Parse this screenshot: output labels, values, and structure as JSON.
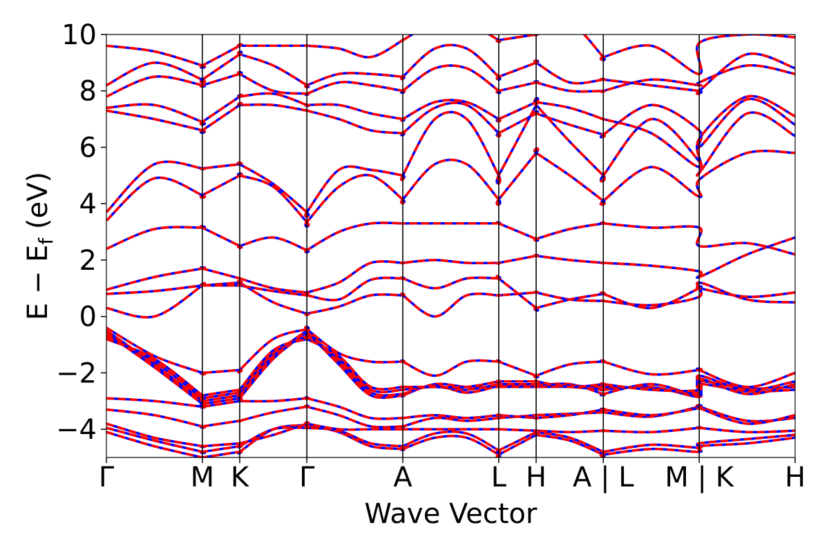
{
  "chart_data": {
    "type": "line",
    "title": "",
    "xlabel": "Wave Vector",
    "ylabel": {
      "pre": "E − E",
      "sub": "f",
      "post": " (eV)"
    },
    "ylim": [
      -5,
      10
    ],
    "yticks": [
      -4,
      -2,
      0,
      2,
      4,
      6,
      8,
      10
    ],
    "ytick_labels": [
      "−4",
      "−2",
      "0",
      "2",
      "4",
      "6",
      "8",
      "10"
    ],
    "grid": false,
    "legend": "none",
    "kpath": {
      "segments": [
        {
          "start": "Γ",
          "end": "M",
          "length": 1.0
        },
        {
          "start": "M",
          "end": "K",
          "length": 0.39
        },
        {
          "start": "K",
          "end": "Γ",
          "length": 0.7
        },
        {
          "start": "Γ",
          "end": "A",
          "length": 1.0
        },
        {
          "start": "A",
          "end": "L",
          "length": 1.0
        },
        {
          "start": "L",
          "end": "H",
          "length": 0.39
        },
        {
          "start": "H",
          "end": "A",
          "length": 0.7
        },
        {
          "start": "L",
          "end": "M",
          "length": 1.0
        },
        {
          "start": "K",
          "end": "H",
          "length": 1.0
        }
      ],
      "tick_labels": [
        "Γ",
        "M",
        "K",
        "Γ",
        "A",
        "L",
        "H",
        "A | L",
        "M | K",
        "H"
      ]
    },
    "colors": {
      "series_a": "#0000ff",
      "series_b": "#ff0000",
      "frame": "#000000"
    },
    "series": [
      {
        "style": "solid blue"
      },
      {
        "style": "dashed red"
      }
    ],
    "bands": [
      {
        "seg": [
          [
            -4.1,
            -4.6,
            -5.0
          ],
          [
            -5.0,
            -4.8
          ],
          [
            -4.8,
            -4.0,
            -3.85
          ],
          [
            -3.85,
            -4.1,
            -4.6,
            -4.7
          ],
          [
            -4.7,
            -4.3,
            -4.3,
            -4.9
          ],
          [
            -4.9,
            -4.2
          ],
          [
            -4.2,
            -4.4,
            -4.9
          ],
          [
            -4.9,
            -4.7,
            -4.8
          ],
          [
            -4.6,
            -4.5,
            -4.3
          ]
        ]
      },
      {
        "seg": [
          [
            -3.95,
            -4.4,
            -4.8
          ],
          [
            -4.8,
            -4.6
          ],
          [
            -4.6,
            -4.0,
            -3.95
          ],
          [
            -3.95,
            -4.05,
            -4.5,
            -4.6
          ],
          [
            -4.6,
            -4.15,
            -4.15,
            -4.75
          ],
          [
            -4.75,
            -4.1
          ],
          [
            -4.1,
            -4.3,
            -4.8
          ],
          [
            -4.8,
            -4.55,
            -4.65
          ],
          [
            -4.5,
            -4.35,
            -4.2
          ]
        ]
      },
      {
        "seg": [
          [
            -3.8,
            -4.3,
            -4.6
          ],
          [
            -4.6,
            -4.5
          ],
          [
            -4.5,
            -4.2,
            -3.8
          ],
          [
            -3.8,
            -4.0,
            -4.0,
            -4.0
          ],
          [
            -4.0,
            -4.0,
            -4.0,
            -4.0
          ],
          [
            -4.0,
            -4.05
          ],
          [
            -4.05,
            -4.1,
            -4.05
          ],
          [
            -4.05,
            -4.1,
            -3.95
          ],
          [
            -3.95,
            -4.1,
            -4.05
          ]
        ]
      },
      {
        "seg": [
          [
            -3.3,
            -3.5,
            -3.9
          ],
          [
            -3.9,
            -3.7
          ],
          [
            -3.7,
            -3.4,
            -3.2
          ],
          [
            -3.2,
            -3.5,
            -3.9,
            -3.9
          ],
          [
            -3.9,
            -3.6,
            -3.7,
            -3.6
          ],
          [
            -3.6,
            -3.5
          ],
          [
            -3.5,
            -3.45,
            -3.4
          ],
          [
            -3.4,
            -3.55,
            -3.2
          ],
          [
            -3.2,
            -3.7,
            -3.6
          ]
        ]
      },
      {
        "seg": [
          [
            -2.9,
            -3.0,
            -3.2
          ],
          [
            -3.2,
            -3.0
          ],
          [
            -3.0,
            -3.0,
            -2.9
          ],
          [
            -2.9,
            -3.2,
            -3.6,
            -3.6
          ],
          [
            -3.6,
            -3.5,
            -3.6,
            -3.5
          ],
          [
            -3.5,
            -3.6
          ],
          [
            -3.6,
            -3.5,
            -3.3
          ],
          [
            -3.3,
            -3.5,
            -3.25
          ],
          [
            -3.25,
            -3.8,
            -3.5
          ]
        ]
      },
      {
        "seg": [
          [
            -0.6,
            -1.8,
            -3.1
          ],
          [
            -3.1,
            -2.9
          ],
          [
            -2.9,
            -1.5,
            -0.55
          ],
          [
            -0.55,
            -1.7,
            -2.8,
            -2.8
          ],
          [
            -2.8,
            -2.4,
            -2.5,
            -2.5
          ],
          [
            -2.5,
            -2.5
          ],
          [
            -2.5,
            -2.5,
            -2.6
          ],
          [
            -2.6,
            -2.5,
            -2.85
          ],
          [
            -2.4,
            -2.65,
            -2.6
          ]
        ]
      },
      {
        "seg": [
          [
            -0.5,
            -1.7,
            -3.0
          ],
          [
            -3.0,
            -2.8
          ],
          [
            -2.8,
            -1.4,
            -0.5
          ],
          [
            -0.5,
            -1.6,
            -2.7,
            -2.75
          ],
          [
            -2.75,
            -2.45,
            -2.7,
            -2.45
          ],
          [
            -2.45,
            -2.45
          ],
          [
            -2.45,
            -2.4,
            -2.75
          ],
          [
            -2.75,
            -2.4,
            -2.8
          ],
          [
            -2.3,
            -2.55,
            -2.5
          ]
        ]
      },
      {
        "seg": [
          [
            -0.7,
            -1.6,
            -2.9
          ],
          [
            -2.9,
            -2.7
          ],
          [
            -2.7,
            -1.3,
            -0.7
          ],
          [
            -0.7,
            -1.5,
            -2.6,
            -2.6
          ],
          [
            -2.6,
            -2.5,
            -2.6,
            -2.4
          ],
          [
            -2.4,
            -2.4
          ],
          [
            -2.4,
            -2.45,
            -2.5
          ],
          [
            -2.5,
            -2.55,
            -2.7
          ],
          [
            -2.2,
            -2.75,
            -2.4
          ]
        ]
      },
      {
        "seg": [
          [
            -0.8,
            -1.5,
            -2.8
          ],
          [
            -2.8,
            -2.6
          ],
          [
            -2.6,
            -1.2,
            -0.8
          ],
          [
            -0.8,
            -1.4,
            -2.5,
            -2.5
          ],
          [
            -2.5,
            -2.5,
            -2.5,
            -2.3
          ],
          [
            -2.3,
            -2.3
          ],
          [
            -2.3,
            -2.5,
            -2.4
          ],
          [
            -2.4,
            -2.6,
            -2.6
          ],
          [
            -2.1,
            -2.6,
            -2.3
          ]
        ]
      },
      {
        "seg": [
          [
            -0.4,
            -1.4,
            -2.0
          ],
          [
            -2.0,
            -1.9
          ],
          [
            -1.9,
            -0.8,
            -0.45
          ],
          [
            -0.45,
            -1.3,
            -1.6,
            -1.6
          ],
          [
            -1.6,
            -2.1,
            -1.6,
            -1.6
          ],
          [
            -1.6,
            -2.1
          ],
          [
            -2.1,
            -1.7,
            -1.6
          ],
          [
            -1.6,
            -2.05,
            -1.9
          ],
          [
            -1.9,
            -2.5,
            -2.0
          ]
        ]
      },
      {
        "seg": [
          [
            0.3,
            0.0,
            1.1
          ],
          [
            1.1,
            1.2
          ],
          [
            1.2,
            0.5,
            0.1
          ],
          [
            0.1,
            0.35,
            0.75,
            0.75
          ],
          [
            0.75,
            0.0,
            0.75,
            0.75
          ],
          [
            0.75,
            0.85
          ],
          [
            0.85,
            0.6,
            0.55
          ],
          [
            0.55,
            0.4,
            0.7
          ],
          [
            1.2,
            0.6,
            0.5
          ]
        ]
      },
      {
        "seg": [
          [
            0.8,
            0.9,
            1.1
          ],
          [
            1.1,
            1.1
          ],
          [
            1.1,
            0.9,
            0.75
          ],
          [
            0.75,
            0.6,
            1.3,
            1.35
          ],
          [
            1.35,
            1.0,
            1.35,
            1.35
          ],
          [
            1.35,
            0.3
          ],
          [
            0.3,
            0.6,
            0.8
          ],
          [
            0.8,
            0.3,
            1.0
          ],
          [
            1.0,
            0.7,
            0.85
          ]
        ]
      },
      {
        "seg": [
          [
            0.95,
            1.4,
            1.7
          ],
          [
            1.7,
            1.35
          ],
          [
            1.35,
            1.0,
            0.85
          ],
          [
            0.85,
            1.2,
            1.9,
            1.9
          ],
          [
            1.9,
            2.0,
            1.9,
            1.9
          ],
          [
            1.9,
            2.15
          ],
          [
            2.15,
            2.0,
            1.9
          ],
          [
            1.9,
            1.8,
            1.6
          ],
          [
            1.4,
            2.2,
            2.8
          ]
        ]
      },
      {
        "seg": [
          [
            2.4,
            3.1,
            3.15
          ],
          [
            3.15,
            2.5
          ],
          [
            2.5,
            2.8,
            2.35
          ],
          [
            2.35,
            3.0,
            3.3,
            3.3
          ],
          [
            3.3,
            3.3,
            3.3,
            3.3
          ],
          [
            3.3,
            2.75
          ],
          [
            2.75,
            3.1,
            3.3
          ],
          [
            3.3,
            3.15,
            3.15
          ],
          [
            2.5,
            2.6,
            2.2
          ]
        ]
      },
      {
        "seg": [
          [
            3.4,
            4.9,
            4.3
          ],
          [
            4.3,
            5.0
          ],
          [
            5.0,
            4.6,
            3.35
          ],
          [
            3.35,
            4.6,
            5.0,
            4.15
          ],
          [
            4.15,
            5.4,
            5.4,
            4.15
          ],
          [
            4.15,
            5.8
          ],
          [
            5.8,
            5.0,
            4.1
          ],
          [
            4.1,
            5.3,
            4.25
          ],
          [
            4.85,
            5.8,
            5.8
          ]
        ]
      },
      {
        "seg": [
          [
            3.7,
            5.4,
            5.25
          ],
          [
            5.25,
            5.4
          ],
          [
            5.4,
            4.7,
            3.7
          ],
          [
            3.7,
            5.2,
            5.2,
            5.0
          ],
          [
            5.0,
            7.0,
            7.0,
            5.0
          ],
          [
            5.0,
            7.5
          ],
          [
            7.5,
            6.2,
            5.0
          ],
          [
            5.0,
            7.0,
            5.5
          ],
          [
            5.1,
            7.2,
            6.4
          ]
        ]
      },
      {
        "seg": [
          [
            7.3,
            7.0,
            6.6
          ],
          [
            6.6,
            7.5
          ],
          [
            7.5,
            7.5,
            7.3
          ],
          [
            7.3,
            7.0,
            6.6,
            6.5
          ],
          [
            6.5,
            7.4,
            7.5,
            6.5
          ],
          [
            6.5,
            7.2
          ],
          [
            7.2,
            6.8,
            6.45
          ],
          [
            6.45,
            7.5,
            6.6
          ],
          [
            6.0,
            7.7,
            6.8
          ]
        ]
      },
      {
        "seg": [
          [
            7.4,
            7.5,
            6.9
          ],
          [
            6.9,
            7.8
          ],
          [
            7.8,
            7.9,
            7.5
          ],
          [
            7.5,
            7.5,
            7.2,
            7.0
          ],
          [
            7.0,
            7.6,
            7.6,
            7.0
          ],
          [
            7.0,
            7.6
          ],
          [
            7.6,
            7.4,
            7.0
          ],
          [
            7.0,
            6.5,
            5.3
          ],
          [
            6.3,
            7.8,
            7.1
          ]
        ]
      },
      {
        "seg": [
          [
            7.8,
            8.5,
            8.2
          ],
          [
            8.2,
            8.6
          ],
          [
            8.6,
            8.0,
            7.9
          ],
          [
            7.9,
            8.3,
            8.2,
            8.0
          ],
          [
            8.0,
            8.8,
            8.8,
            8.0
          ],
          [
            8.0,
            8.3
          ],
          [
            8.3,
            8.0,
            8.0
          ],
          [
            8.0,
            8.4,
            8.2
          ],
          [
            8.3,
            8.9,
            8.6
          ]
        ]
      },
      {
        "seg": [
          [
            8.2,
            9.0,
            8.4
          ],
          [
            8.4,
            9.3
          ],
          [
            9.3,
            8.9,
            8.2
          ],
          [
            8.2,
            8.6,
            8.6,
            8.5
          ],
          [
            8.5,
            9.5,
            9.5,
            8.5
          ],
          [
            8.5,
            9.0
          ],
          [
            9.0,
            8.3,
            8.4
          ],
          [
            8.4,
            8.2,
            8.0
          ],
          [
            8.0,
            9.3,
            8.8
          ]
        ]
      },
      {
        "seg": [
          [
            9.6,
            9.4,
            8.9
          ],
          [
            8.9,
            9.6
          ],
          [
            9.6,
            9.6,
            9.6
          ],
          [
            9.6,
            9.5,
            9.2,
            9.8
          ],
          [
            9.8,
            10.4,
            10.4,
            9.8
          ],
          [
            9.8,
            10.0
          ],
          [
            10.0,
            10.4,
            9.2
          ],
          [
            9.2,
            9.6,
            8.6
          ],
          [
            9.7,
            10.0,
            9.9
          ]
        ]
      }
    ]
  }
}
